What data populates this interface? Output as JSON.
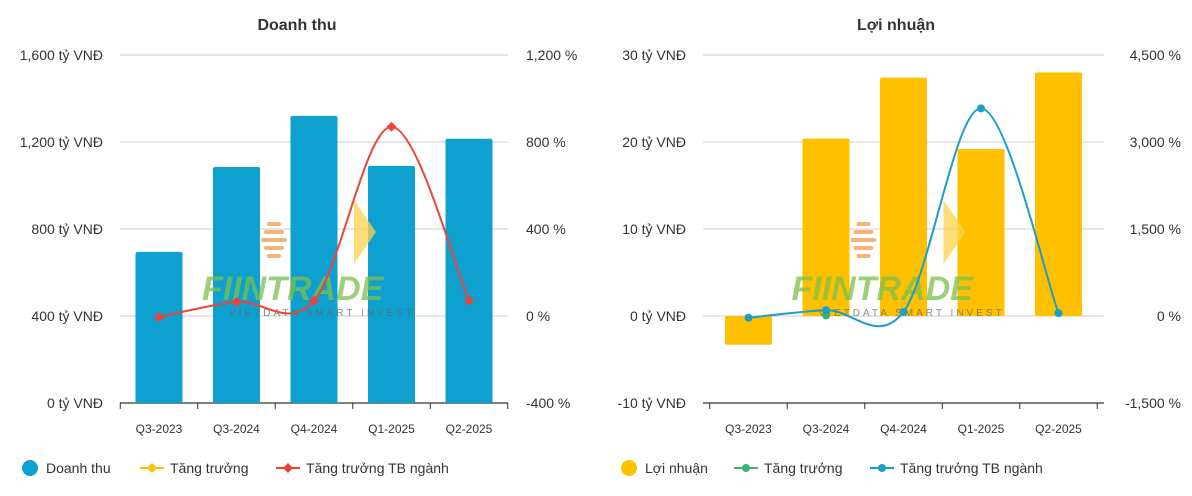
{
  "watermark": {
    "brand": "FIINTRADE",
    "sub": "VIETDATA SMART INVEST"
  },
  "colors": {
    "grid": "#cccccc",
    "axis": "#333333"
  },
  "chart_data": [
    {
      "id": "revenue",
      "type": "bar",
      "title": "Doanh thu",
      "categories": [
        "Q3-2023",
        "Q3-2024",
        "Q4-2024",
        "Q1-2025",
        "Q2-2025"
      ],
      "ylim": [
        0,
        1600
      ],
      "y_ticks": [
        0,
        400,
        800,
        1200,
        1600
      ],
      "y_tick_labels": [
        "0 tỷ VNĐ",
        "400 tỷ VNĐ",
        "800 tỷ VNĐ",
        "1,200 tỷ VNĐ",
        "1,600 tỷ VNĐ"
      ],
      "y2lim": [
        -400,
        1200
      ],
      "y2_ticks": [
        -400,
        0,
        400,
        800,
        1200
      ],
      "y2_tick_labels": [
        "-400 %",
        "0 %",
        "400 %",
        "800 %",
        "1,200 %"
      ],
      "series": [
        {
          "name": "Doanh thu",
          "type": "bar",
          "axis": "y",
          "color": "#0ea0cf",
          "values": [
            695,
            1085,
            1320,
            1090,
            1215
          ]
        },
        {
          "name": "Tăng trưởng",
          "type": "line",
          "axis": "y2",
          "color": "#ffc000",
          "values": [
            null,
            null,
            null,
            null,
            null
          ]
        },
        {
          "name": "Tăng trưởng TB ngành",
          "type": "line",
          "axis": "y2",
          "color": "#ec4436",
          "values": [
            -5,
            65,
            70,
            870,
            70
          ]
        }
      ],
      "legend": [
        {
          "label": "Doanh thu",
          "kind": "dot",
          "color": "#0ea0cf"
        },
        {
          "label": "Tăng trưởng",
          "kind": "line",
          "color": "#ffc000"
        },
        {
          "label": "Tăng trưởng TB ngành",
          "kind": "line",
          "color": "#ec4436"
        }
      ]
    },
    {
      "id": "profit",
      "type": "bar",
      "title": "Lợi nhuận",
      "categories": [
        "Q3-2023",
        "Q3-2024",
        "Q4-2024",
        "Q1-2025",
        "Q2-2025"
      ],
      "ylim": [
        -10,
        30
      ],
      "y_ticks": [
        -10,
        0,
        10,
        20,
        30
      ],
      "y_tick_labels": [
        "-10 tỷ VNĐ",
        "0 tỷ VNĐ",
        "10 tỷ VNĐ",
        "20 tỷ VNĐ",
        "30 tỷ VNĐ"
      ],
      "y2lim": [
        -1500,
        4500
      ],
      "y2_ticks": [
        -1500,
        0,
        1500,
        3000,
        4500
      ],
      "y2_tick_labels": [
        "-1,500 %",
        "0 %",
        "1,500 %",
        "3,000 %",
        "4,500 %"
      ],
      "series": [
        {
          "name": "Lợi nhuận",
          "type": "bar",
          "axis": "y",
          "color": "#ffc000",
          "values": [
            -3.3,
            20.4,
            27.4,
            19.2,
            28.0
          ]
        },
        {
          "name": "Tăng trưởng",
          "type": "line",
          "axis": "y2",
          "color": "#3cb371",
          "values": [
            null,
            10,
            null,
            null,
            null
          ]
        },
        {
          "name": "Tăng trưởng TB ngành",
          "type": "line",
          "axis": "y2",
          "color": "#1b9ec8",
          "values": [
            -30,
            100,
            70,
            3580,
            50
          ]
        }
      ],
      "legend": [
        {
          "label": "Lợi nhuận",
          "kind": "dot",
          "color": "#ffc000"
        },
        {
          "label": "Tăng trưởng",
          "kind": "line",
          "color": "#3cb371"
        },
        {
          "label": "Tăng trưởng TB ngành",
          "kind": "line",
          "color": "#1b9ec8"
        }
      ]
    }
  ]
}
